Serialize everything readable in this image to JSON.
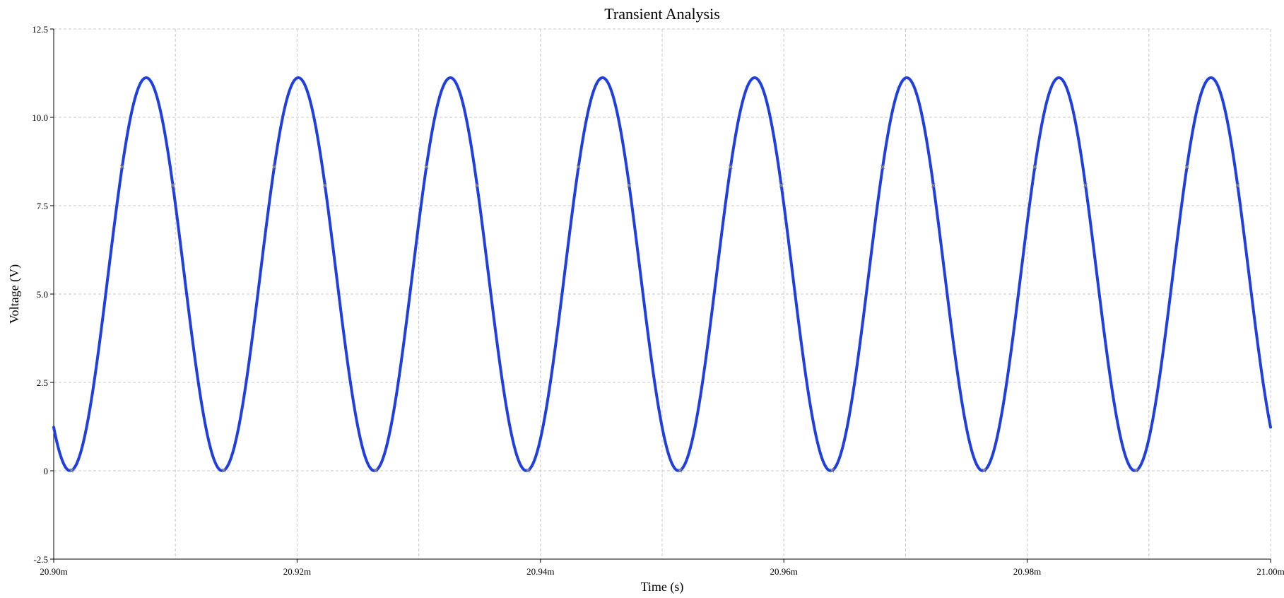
{
  "chart_data": {
    "type": "line",
    "title": "Transient Analysis",
    "xlabel": "Time (s)",
    "ylabel": "Voltage (V)",
    "xlim": [
      0.0209,
      0.021
    ],
    "ylim": [
      -2.5,
      12.5
    ],
    "x_ticks": [
      0.0209,
      0.02092,
      0.02094,
      0.02096,
      0.02098,
      0.021
    ],
    "x_tick_labels": [
      "20.90m",
      "20.92m",
      "20.94m",
      "20.96m",
      "20.98m",
      "21.00m"
    ],
    "y_ticks": [
      -2.5,
      0,
      2.5,
      5.0,
      7.5,
      10.0,
      12.5
    ],
    "y_tick_labels": [
      "-2.5",
      "0",
      "2.5",
      "5.0",
      "7.5",
      "10.0",
      "12.5"
    ],
    "x_minor_grid": [
      0.02091,
      0.02093,
      0.02095,
      0.02097,
      0.02099
    ],
    "grid": true,
    "series": [
      {
        "color": "#1f3fe0",
        "waveform": "sine",
        "offset": 5.56,
        "amplitude": 5.56,
        "frequency_hz": 80000,
        "peak_time": 0.0209076,
        "minimum": 0.0,
        "maximum": 11.12
      }
    ]
  }
}
